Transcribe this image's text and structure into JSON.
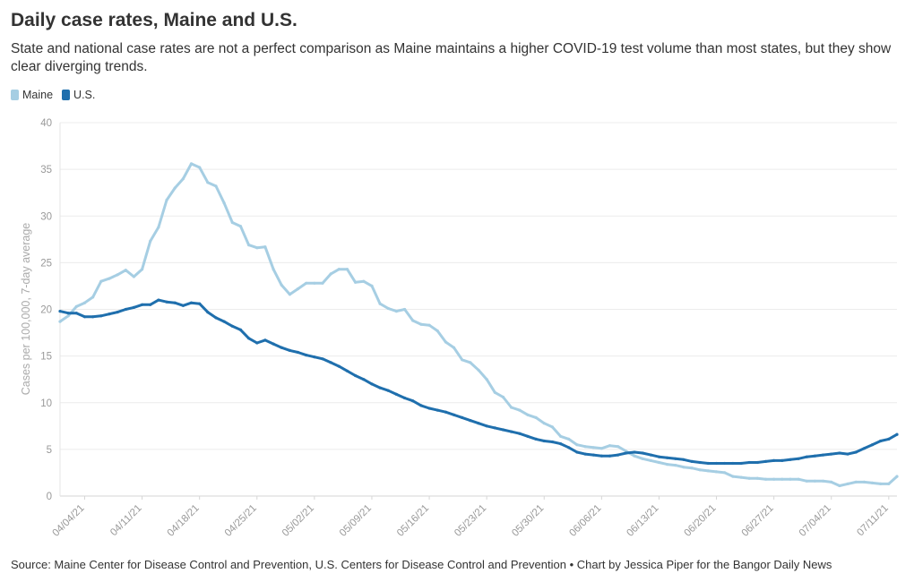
{
  "title": "Daily case rates, Maine and U.S.",
  "subtitle": "State and national case rates are not a perfect comparison as Maine maintains a higher COVID-19 test volume than most states, but they show clear diverging trends.",
  "source": "Source: Maine Center for Disease Control and Prevention, U.S. Centers for Disease Control and Prevention • Chart by Jessica Piper for the Bangor Daily News",
  "chart_data": {
    "type": "line",
    "ylabel": "Cases per 100,000, 7-day average",
    "ylim": [
      0,
      40
    ],
    "yticks": [
      "0",
      "5",
      "10",
      "15",
      "20",
      "25",
      "30",
      "35",
      "40"
    ],
    "xlim": [
      "2021-04-01",
      "2021-07-12"
    ],
    "xticks": [
      "04/04/21",
      "04/11/21",
      "04/18/21",
      "04/25/21",
      "05/02/21",
      "05/09/21",
      "05/16/21",
      "05/23/21",
      "05/30/21",
      "06/06/21",
      "06/13/21",
      "06/20/21",
      "06/27/21",
      "07/04/21",
      "07/11/21"
    ],
    "grid": "horizontal",
    "legend_position": "top-left",
    "series": [
      {
        "name": "Maine",
        "color": "#a6cee3",
        "points": [
          [
            "2021-04-01",
            18.7
          ],
          [
            "2021-04-02",
            19.3
          ],
          [
            "2021-04-03",
            20.3
          ],
          [
            "2021-04-04",
            20.7
          ],
          [
            "2021-04-05",
            21.3
          ],
          [
            "2021-04-06",
            23.0
          ],
          [
            "2021-04-07",
            23.3
          ],
          [
            "2021-04-08",
            23.7
          ],
          [
            "2021-04-09",
            24.2
          ],
          [
            "2021-04-10",
            23.5
          ],
          [
            "2021-04-11",
            24.3
          ],
          [
            "2021-04-12",
            27.3
          ],
          [
            "2021-04-13",
            28.8
          ],
          [
            "2021-04-14",
            31.7
          ],
          [
            "2021-04-15",
            33.0
          ],
          [
            "2021-04-16",
            34.0
          ],
          [
            "2021-04-17",
            35.6
          ],
          [
            "2021-04-18",
            35.2
          ],
          [
            "2021-04-19",
            33.6
          ],
          [
            "2021-04-20",
            33.2
          ],
          [
            "2021-04-21",
            31.4
          ],
          [
            "2021-04-22",
            29.3
          ],
          [
            "2021-04-23",
            28.9
          ],
          [
            "2021-04-24",
            26.9
          ],
          [
            "2021-04-25",
            26.6
          ],
          [
            "2021-04-26",
            26.7
          ],
          [
            "2021-04-27",
            24.3
          ],
          [
            "2021-04-28",
            22.6
          ],
          [
            "2021-04-29",
            21.6
          ],
          [
            "2021-04-30",
            22.2
          ],
          [
            "2021-05-01",
            22.8
          ],
          [
            "2021-05-02",
            22.8
          ],
          [
            "2021-05-03",
            22.8
          ],
          [
            "2021-05-04",
            23.8
          ],
          [
            "2021-05-05",
            24.3
          ],
          [
            "2021-05-06",
            24.3
          ],
          [
            "2021-05-07",
            22.9
          ],
          [
            "2021-05-08",
            23.0
          ],
          [
            "2021-05-09",
            22.5
          ],
          [
            "2021-05-10",
            20.6
          ],
          [
            "2021-05-11",
            20.1
          ],
          [
            "2021-05-12",
            19.8
          ],
          [
            "2021-05-13",
            20.0
          ],
          [
            "2021-05-14",
            18.8
          ],
          [
            "2021-05-15",
            18.4
          ],
          [
            "2021-05-16",
            18.3
          ],
          [
            "2021-05-17",
            17.7
          ],
          [
            "2021-05-18",
            16.5
          ],
          [
            "2021-05-19",
            15.9
          ],
          [
            "2021-05-20",
            14.6
          ],
          [
            "2021-05-21",
            14.3
          ],
          [
            "2021-05-22",
            13.5
          ],
          [
            "2021-05-23",
            12.5
          ],
          [
            "2021-05-24",
            11.1
          ],
          [
            "2021-05-25",
            10.6
          ],
          [
            "2021-05-26",
            9.5
          ],
          [
            "2021-05-27",
            9.2
          ],
          [
            "2021-05-28",
            8.7
          ],
          [
            "2021-05-29",
            8.4
          ],
          [
            "2021-05-30",
            7.8
          ],
          [
            "2021-05-31",
            7.4
          ],
          [
            "2021-06-01",
            6.4
          ],
          [
            "2021-06-02",
            6.1
          ],
          [
            "2021-06-03",
            5.5
          ],
          [
            "2021-06-04",
            5.3
          ],
          [
            "2021-06-05",
            5.2
          ],
          [
            "2021-06-06",
            5.1
          ],
          [
            "2021-06-07",
            5.4
          ],
          [
            "2021-06-08",
            5.3
          ],
          [
            "2021-06-09",
            4.8
          ],
          [
            "2021-06-10",
            4.3
          ],
          [
            "2021-06-11",
            4.0
          ],
          [
            "2021-06-12",
            3.8
          ],
          [
            "2021-06-13",
            3.6
          ],
          [
            "2021-06-14",
            3.4
          ],
          [
            "2021-06-15",
            3.3
          ],
          [
            "2021-06-16",
            3.1
          ],
          [
            "2021-06-17",
            3.0
          ],
          [
            "2021-06-18",
            2.8
          ],
          [
            "2021-06-19",
            2.7
          ],
          [
            "2021-06-20",
            2.6
          ],
          [
            "2021-06-21",
            2.5
          ],
          [
            "2021-06-22",
            2.1
          ],
          [
            "2021-06-23",
            2.0
          ],
          [
            "2021-06-24",
            1.9
          ],
          [
            "2021-06-25",
            1.9
          ],
          [
            "2021-06-26",
            1.8
          ],
          [
            "2021-06-27",
            1.8
          ],
          [
            "2021-06-28",
            1.8
          ],
          [
            "2021-06-29",
            1.8
          ],
          [
            "2021-06-30",
            1.8
          ],
          [
            "2021-07-01",
            1.6
          ],
          [
            "2021-07-02",
            1.6
          ],
          [
            "2021-07-03",
            1.6
          ],
          [
            "2021-07-04",
            1.5
          ],
          [
            "2021-07-05",
            1.1
          ],
          [
            "2021-07-06",
            1.3
          ],
          [
            "2021-07-07",
            1.5
          ],
          [
            "2021-07-08",
            1.5
          ],
          [
            "2021-07-09",
            1.4
          ],
          [
            "2021-07-10",
            1.3
          ],
          [
            "2021-07-11",
            1.3
          ],
          [
            "2021-07-12",
            2.1
          ]
        ]
      },
      {
        "name": "U.S.",
        "color": "#1f6fad",
        "points": [
          [
            "2021-04-01",
            19.8
          ],
          [
            "2021-04-02",
            19.6
          ],
          [
            "2021-04-03",
            19.6
          ],
          [
            "2021-04-04",
            19.2
          ],
          [
            "2021-04-05",
            19.2
          ],
          [
            "2021-04-06",
            19.3
          ],
          [
            "2021-04-07",
            19.5
          ],
          [
            "2021-04-08",
            19.7
          ],
          [
            "2021-04-09",
            20.0
          ],
          [
            "2021-04-10",
            20.2
          ],
          [
            "2021-04-11",
            20.5
          ],
          [
            "2021-04-12",
            20.5
          ],
          [
            "2021-04-13",
            21.0
          ],
          [
            "2021-04-14",
            20.8
          ],
          [
            "2021-04-15",
            20.7
          ],
          [
            "2021-04-16",
            20.4
          ],
          [
            "2021-04-17",
            20.7
          ],
          [
            "2021-04-18",
            20.6
          ],
          [
            "2021-04-19",
            19.7
          ],
          [
            "2021-04-20",
            19.1
          ],
          [
            "2021-04-21",
            18.7
          ],
          [
            "2021-04-22",
            18.2
          ],
          [
            "2021-04-23",
            17.8
          ],
          [
            "2021-04-24",
            16.9
          ],
          [
            "2021-04-25",
            16.4
          ],
          [
            "2021-04-26",
            16.7
          ],
          [
            "2021-04-27",
            16.3
          ],
          [
            "2021-04-28",
            15.9
          ],
          [
            "2021-04-29",
            15.6
          ],
          [
            "2021-04-30",
            15.4
          ],
          [
            "2021-05-01",
            15.1
          ],
          [
            "2021-05-02",
            14.9
          ],
          [
            "2021-05-03",
            14.7
          ],
          [
            "2021-05-04",
            14.3
          ],
          [
            "2021-05-05",
            13.9
          ],
          [
            "2021-05-06",
            13.4
          ],
          [
            "2021-05-07",
            12.9
          ],
          [
            "2021-05-08",
            12.5
          ],
          [
            "2021-05-09",
            12.0
          ],
          [
            "2021-05-10",
            11.6
          ],
          [
            "2021-05-11",
            11.3
          ],
          [
            "2021-05-12",
            10.9
          ],
          [
            "2021-05-13",
            10.5
          ],
          [
            "2021-05-14",
            10.2
          ],
          [
            "2021-05-15",
            9.7
          ],
          [
            "2021-05-16",
            9.4
          ],
          [
            "2021-05-17",
            9.2
          ],
          [
            "2021-05-18",
            9.0
          ],
          [
            "2021-05-19",
            8.7
          ],
          [
            "2021-05-20",
            8.4
          ],
          [
            "2021-05-21",
            8.1
          ],
          [
            "2021-05-22",
            7.8
          ],
          [
            "2021-05-23",
            7.5
          ],
          [
            "2021-05-24",
            7.3
          ],
          [
            "2021-05-25",
            7.1
          ],
          [
            "2021-05-26",
            6.9
          ],
          [
            "2021-05-27",
            6.7
          ],
          [
            "2021-05-28",
            6.4
          ],
          [
            "2021-05-29",
            6.1
          ],
          [
            "2021-05-30",
            5.9
          ],
          [
            "2021-05-31",
            5.8
          ],
          [
            "2021-06-01",
            5.6
          ],
          [
            "2021-06-02",
            5.2
          ],
          [
            "2021-06-03",
            4.7
          ],
          [
            "2021-06-04",
            4.5
          ],
          [
            "2021-06-05",
            4.4
          ],
          [
            "2021-06-06",
            4.3
          ],
          [
            "2021-06-07",
            4.3
          ],
          [
            "2021-06-08",
            4.4
          ],
          [
            "2021-06-09",
            4.6
          ],
          [
            "2021-06-10",
            4.7
          ],
          [
            "2021-06-11",
            4.6
          ],
          [
            "2021-06-12",
            4.4
          ],
          [
            "2021-06-13",
            4.2
          ],
          [
            "2021-06-14",
            4.1
          ],
          [
            "2021-06-15",
            4.0
          ],
          [
            "2021-06-16",
            3.9
          ],
          [
            "2021-06-17",
            3.7
          ],
          [
            "2021-06-18",
            3.6
          ],
          [
            "2021-06-19",
            3.5
          ],
          [
            "2021-06-20",
            3.5
          ],
          [
            "2021-06-21",
            3.5
          ],
          [
            "2021-06-22",
            3.5
          ],
          [
            "2021-06-23",
            3.5
          ],
          [
            "2021-06-24",
            3.6
          ],
          [
            "2021-06-25",
            3.6
          ],
          [
            "2021-06-26",
            3.7
          ],
          [
            "2021-06-27",
            3.8
          ],
          [
            "2021-06-28",
            3.8
          ],
          [
            "2021-06-29",
            3.9
          ],
          [
            "2021-06-30",
            4.0
          ],
          [
            "2021-07-01",
            4.2
          ],
          [
            "2021-07-02",
            4.3
          ],
          [
            "2021-07-03",
            4.4
          ],
          [
            "2021-07-04",
            4.5
          ],
          [
            "2021-07-05",
            4.6
          ],
          [
            "2021-07-06",
            4.5
          ],
          [
            "2021-07-07",
            4.7
          ],
          [
            "2021-07-08",
            5.1
          ],
          [
            "2021-07-09",
            5.5
          ],
          [
            "2021-07-10",
            5.9
          ],
          [
            "2021-07-11",
            6.1
          ],
          [
            "2021-07-12",
            6.6
          ]
        ]
      }
    ]
  }
}
